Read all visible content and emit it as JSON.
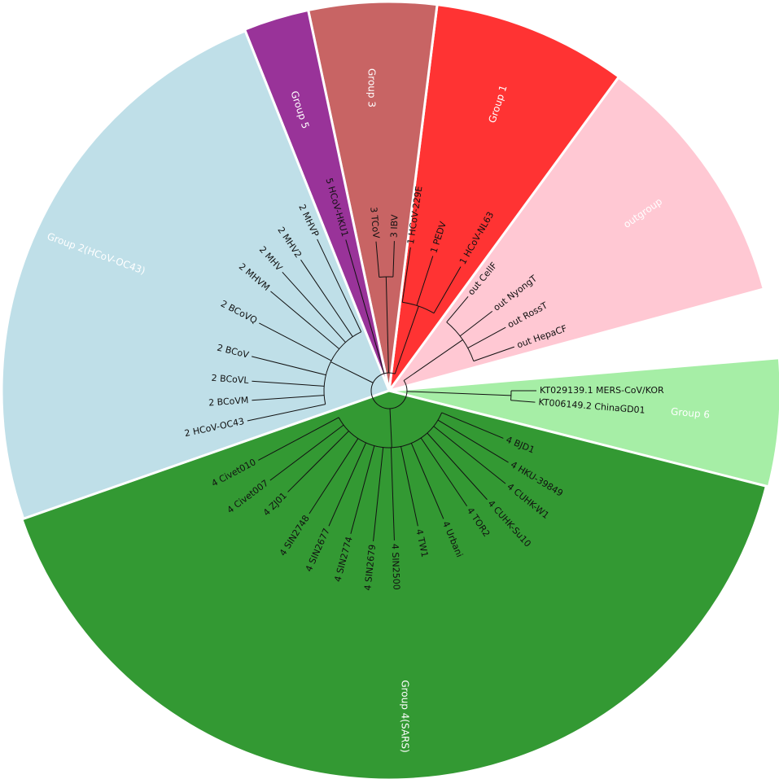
{
  "groups": [
    "Group 6",
    "outgroup",
    "Group 1",
    "Group 3",
    "Group 5",
    "Group 2(HCoV-OC43)",
    "Group 4(SARS)"
  ],
  "leaves": [
    "KT029139.1 MERS-CoV/KOR",
    "KT006149.2 ChinaGD01",
    "4 BJD1",
    "4 HKU-39849",
    "4 CUHK-W1",
    "4 CUHK-Su10",
    "4 TOR2",
    "4 Urbani",
    "4 TW1",
    "4 SIN2500",
    "4 SIN2679",
    "4 SIN2774",
    "4 SIN2677",
    "4 SIN2748",
    "4 ZJ01",
    "4 Civet007",
    "4 Civet010",
    "2 HCoV-OC43",
    "2 BCoVM",
    "2 BCoVL",
    "2 BCoV",
    "2 BCoVQ",
    "2 MHVM",
    "2 MHV",
    "2 MHV2",
    "2 MHVP",
    "5 HCoV-HKU1",
    "3 TCoV",
    "3 IBV",
    "1 HCoV-229E",
    "1 PEDV",
    "1 HCoV-NL63",
    "out CellF",
    "out NyongT",
    "out RossT",
    "out HepaCF"
  ]
}
